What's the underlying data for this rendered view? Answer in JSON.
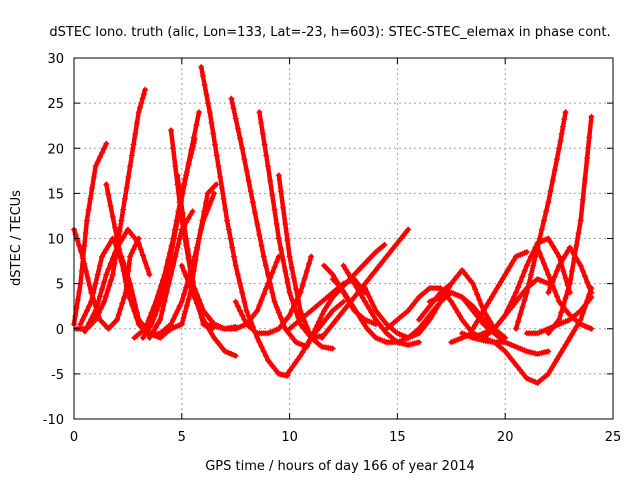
{
  "chart_data": {
    "type": "line",
    "title": "dSTEC Iono. truth (alic, Lon=133, Lat=-23, h=603): STEC-STEC_elemax in phase cont.",
    "xlabel": "GPS time / hours of day 166 of year 2014",
    "ylabel": "dSTEC  / TECUs",
    "xlim": [
      0,
      25
    ],
    "ylim": [
      -10,
      30
    ],
    "x_ticks": [
      0,
      5,
      10,
      15,
      20,
      25
    ],
    "y_ticks": [
      -10,
      -5,
      0,
      5,
      10,
      15,
      20,
      25,
      30
    ],
    "grid": true,
    "marker": "+",
    "color": "#ff0000",
    "series": [
      {
        "x": [
          0.0,
          0.3,
          0.6,
          1.0,
          1.5
        ],
        "y": [
          0.5,
          5,
          12,
          18,
          20.5
        ]
      },
      {
        "x": [
          0.0,
          0.4,
          0.8,
          1.2,
          1.6,
          2.0,
          2.4,
          2.6,
          3.0
        ],
        "y": [
          11,
          8,
          4,
          1,
          0,
          1,
          4,
          8,
          10
        ]
      },
      {
        "x": [
          0.1,
          0.6,
          1.0,
          1.4,
          1.8,
          2.2,
          2.6,
          3.0,
          3.3
        ],
        "y": [
          0,
          0,
          1,
          3,
          6,
          12,
          18,
          24,
          26.5
        ]
      },
      {
        "x": [
          0.3,
          0.8,
          1.3,
          1.8,
          2.2,
          2.6,
          3.0
        ],
        "y": [
          0.5,
          3,
          8,
          10,
          8,
          5,
          1
        ]
      },
      {
        "x": [
          0.5,
          1.0,
          1.5,
          2.0,
          2.5,
          3.0,
          3.5
        ],
        "y": [
          -0.3,
          2,
          6,
          9,
          11,
          9.5,
          6
        ]
      },
      {
        "x": [
          1.5,
          2.0,
          2.5,
          3.0,
          3.5,
          4.0,
          4.5,
          5.0
        ],
        "y": [
          16,
          10,
          4,
          0.5,
          -0.8,
          -0.5,
          0,
          0.5
        ]
      },
      {
        "x": [
          2.0,
          2.5,
          3.0,
          3.5,
          4.0,
          4.5
        ],
        "y": [
          9,
          5,
          1,
          -0.5,
          -1,
          0
        ]
      },
      {
        "x": [
          2.8,
          3.3,
          3.8,
          4.2,
          4.6,
          5.0,
          5.4,
          5.6
        ],
        "y": [
          -1,
          0,
          3,
          6,
          10,
          15,
          19,
          21
        ]
      },
      {
        "x": [
          3.2,
          3.6,
          4.0,
          4.4,
          4.8,
          5.2,
          5.8
        ],
        "y": [
          -1,
          0.5,
          3,
          7,
          12,
          17,
          24
        ]
      },
      {
        "x": [
          4.5,
          5.0,
          5.5,
          6.0,
          6.5,
          7.0,
          7.5
        ],
        "y": [
          22,
          12,
          5,
          2,
          0.5,
          0,
          0.2
        ]
      },
      {
        "x": [
          4.8,
          5.2,
          5.6,
          6.0,
          6.4
        ],
        "y": [
          17,
          10,
          4,
          0.5,
          0
        ]
      },
      {
        "x": [
          3.5,
          4.0,
          4.5,
          5.0,
          5.5
        ],
        "y": [
          -1,
          1,
          6,
          11,
          13
        ]
      },
      {
        "x": [
          5.0,
          5.4,
          5.8,
          6.2,
          6.6
        ],
        "y": [
          0.5,
          4,
          10,
          15,
          16
        ]
      },
      {
        "x": [
          4.0,
          4.5,
          5.0,
          5.5,
          6.0,
          6.5
        ],
        "y": [
          -0.5,
          0.5,
          3,
          7,
          12,
          15
        ]
      },
      {
        "x": [
          5.9,
          6.3,
          6.7,
          7.1,
          7.5,
          8.0,
          8.5,
          9.0,
          9.5,
          9.9
        ],
        "y": [
          29,
          24,
          18,
          12,
          7,
          2,
          -1,
          -3.5,
          -5,
          -5.2
        ]
      },
      {
        "x": [
          7.3,
          7.8,
          8.3,
          8.8,
          9.3,
          9.8,
          10.3,
          10.8
        ],
        "y": [
          25.5,
          20,
          14,
          8,
          3,
          0,
          -1.5,
          -2
        ]
      },
      {
        "x": [
          8.6,
          9.0,
          9.5,
          10.0,
          10.5,
          11.0,
          11.5
        ],
        "y": [
          24,
          18,
          10,
          4,
          0.5,
          -1,
          -0.8
        ]
      },
      {
        "x": [
          5.0,
          5.5,
          6.0,
          6.5,
          7.0,
          7.5
        ],
        "y": [
          7,
          4,
          1,
          -1,
          -2.5,
          -3
        ]
      },
      {
        "x": [
          6.0,
          6.5,
          7.0,
          7.5,
          8.0,
          8.5,
          9.0,
          9.5
        ],
        "y": [
          0.5,
          0.3,
          0,
          0,
          0.5,
          2,
          5,
          8
        ]
      },
      {
        "x": [
          7.5,
          8.0,
          8.5,
          9.0,
          9.5,
          10.0,
          10.5,
          11.0
        ],
        "y": [
          3,
          0.5,
          -0.5,
          -0.5,
          0,
          1.5,
          4,
          8
        ]
      },
      {
        "x": [
          9.5,
          10.0,
          10.5,
          11.0,
          11.5,
          12.0
        ],
        "y": [
          17,
          8,
          2,
          -1,
          -2,
          -2.2
        ]
      },
      {
        "x": [
          9.9,
          10.5,
          11.0,
          11.5,
          12.0,
          12.5
        ],
        "y": [
          -5,
          -3,
          -1,
          0.5,
          2,
          3
        ]
      },
      {
        "x": [
          10.0,
          10.5,
          11.0,
          11.5,
          12.0,
          12.5,
          13.0,
          13.5
        ],
        "y": [
          0,
          1,
          2,
          3,
          4,
          5,
          5.5,
          4
        ]
      },
      {
        "x": [
          10.8,
          11.2,
          11.6,
          12.0,
          12.4,
          12.8,
          13.2,
          13.6,
          14.0,
          14.4
        ],
        "y": [
          -2,
          0,
          2,
          3.5,
          4.5,
          5.5,
          6.5,
          7.5,
          8.5,
          9.3
        ]
      },
      {
        "x": [
          11.5,
          12.0,
          12.5,
          13.0,
          13.5,
          14.0,
          14.5,
          15.0,
          15.5
        ],
        "y": [
          -1,
          0.5,
          2,
          3.5,
          5,
          6.5,
          8,
          9.5,
          11
        ]
      },
      {
        "x": [
          11.6,
          12.0,
          12.5,
          13.0,
          13.5,
          14.0
        ],
        "y": [
          7,
          6,
          4,
          2,
          1,
          0.5
        ]
      },
      {
        "x": [
          12.0,
          12.4,
          12.8,
          13.2,
          13.6,
          14.0,
          14.5,
          15.0,
          15.5
        ],
        "y": [
          5.5,
          4.5,
          3,
          1.5,
          0,
          -1,
          -1.5,
          -1.5,
          -1
        ]
      },
      {
        "x": [
          12.5,
          13.0,
          13.5,
          14.0,
          14.5,
          15.0,
          15.5,
          16.0
        ],
        "y": [
          7,
          5,
          3,
          1,
          -0.5,
          -1.5,
          -1.8,
          -1.5
        ]
      },
      {
        "x": [
          13.5,
          14.0,
          14.5,
          15.0,
          15.5,
          16.0,
          16.5,
          17.0,
          17.5
        ],
        "y": [
          4.5,
          2,
          0.5,
          -0.5,
          -1,
          -0.5,
          1,
          3,
          5
        ]
      },
      {
        "x": [
          14.5,
          15.0,
          15.5,
          16.0,
          16.5,
          17.0,
          17.5,
          18.0,
          18.5
        ],
        "y": [
          0,
          1,
          2,
          3.5,
          4.5,
          4.5,
          3,
          1,
          -0.5
        ]
      },
      {
        "x": [
          15.5,
          16.0,
          16.5,
          17.0,
          17.5,
          18.0,
          18.5,
          19.0,
          19.5
        ],
        "y": [
          -1,
          0,
          1.5,
          3,
          4,
          3.5,
          2.5,
          1,
          -0.5
        ]
      },
      {
        "x": [
          16.0,
          16.5,
          17.0,
          17.5,
          18.0,
          18.5,
          19.0,
          19.5,
          20.0
        ],
        "y": [
          1,
          2.5,
          4,
          5,
          6.5,
          5,
          2,
          0,
          -1
        ]
      },
      {
        "x": [
          16.5,
          17.0,
          17.5,
          18.0,
          18.5,
          19.0,
          19.5,
          20.0
        ],
        "y": [
          3,
          3.5,
          4,
          3.5,
          2,
          0.5,
          -0.5,
          -1.5
        ]
      },
      {
        "x": [
          17.5,
          18.0,
          18.5,
          19.0,
          19.5,
          20.0,
          20.5,
          21.0,
          21.5
        ],
        "y": [
          -1.5,
          -1,
          -0.5,
          -1,
          -1.5,
          -2.5,
          -4,
          -5.5,
          -6
        ]
      },
      {
        "x": [
          18.0,
          18.5,
          19.0,
          19.5,
          20.0,
          20.5,
          21.0,
          21.5,
          22.0
        ],
        "y": [
          -0.5,
          -1,
          -1.3,
          -1.5,
          -1.5,
          -2,
          -2.5,
          -2.8,
          -2.5
        ]
      },
      {
        "x": [
          18.5,
          19.0,
          19.5,
          20.0,
          20.5,
          21.0,
          21.5,
          22.0,
          22.5,
          23.0
        ],
        "y": [
          -1,
          -0.5,
          0,
          1.5,
          4,
          7,
          9.5,
          10,
          8,
          4
        ]
      },
      {
        "x": [
          18.5,
          19.0,
          19.5,
          20.0,
          20.5,
          21.0
        ],
        "y": [
          0,
          2,
          4,
          6,
          8,
          8.5
        ]
      },
      {
        "x": [
          19.0,
          19.5,
          20.0,
          20.5,
          21.0,
          21.5,
          22.0
        ],
        "y": [
          -1,
          0,
          1.5,
          3,
          4.5,
          5.5,
          5
        ]
      },
      {
        "x": [
          20.5,
          21.0,
          21.5,
          22.0,
          22.5,
          22.8
        ],
        "y": [
          0,
          4,
          9,
          14,
          20,
          24
        ]
      },
      {
        "x": [
          21.5,
          22.0,
          22.5,
          23.0,
          23.5,
          24.0
        ],
        "y": [
          -6,
          -5,
          -3,
          -1,
          1,
          4.5
        ]
      },
      {
        "x": [
          21.0,
          21.5,
          22.0,
          22.5,
          23.0,
          23.5,
          24.0
        ],
        "y": [
          -0.5,
          -0.5,
          0,
          0.5,
          1,
          2,
          3.5
        ]
      },
      {
        "x": [
          22.0,
          22.5,
          23.0,
          23.5,
          24.0
        ],
        "y": [
          4,
          7,
          9,
          7,
          4
        ]
      },
      {
        "x": [
          22.0,
          22.5,
          23.0,
          23.5,
          24.0
        ],
        "y": [
          -0.5,
          1,
          5,
          12,
          23.5
        ]
      },
      {
        "x": [
          21.5,
          22.0,
          22.5,
          23.0,
          23.5,
          24.0
        ],
        "y": [
          9,
          6,
          3,
          1.5,
          0.5,
          0
        ]
      }
    ]
  }
}
